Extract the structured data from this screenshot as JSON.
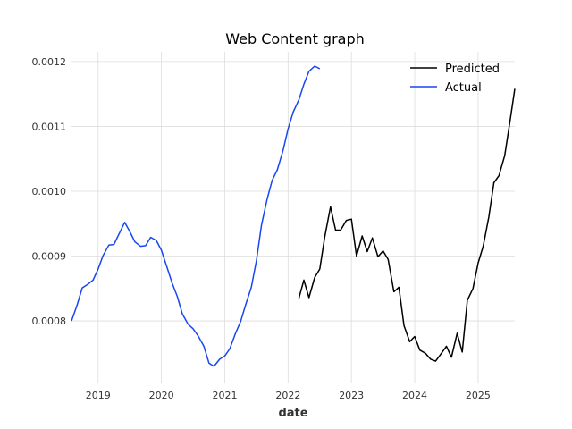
{
  "chart_data": {
    "type": "line",
    "title": "Web Content graph",
    "xlabel": "date",
    "ylabel": "",
    "x_ticks": [
      "2019",
      "2020",
      "2021",
      "2022",
      "2023",
      "2024",
      "2025"
    ],
    "y_ticks": [
      "0.0008",
      "0.0009",
      "0.0010",
      "0.0011",
      "0.0012"
    ],
    "xlim": [
      2018.58,
      2025.58
    ],
    "ylim": [
      0.000705,
      0.001215
    ],
    "grid": true,
    "legend_position": "top-right",
    "series": [
      {
        "name": "Predicted",
        "color": "#000000",
        "x": [
          2022.17,
          2022.25,
          2022.33,
          2022.42,
          2022.5,
          2022.58,
          2022.67,
          2022.75,
          2022.83,
          2022.92,
          2023.0,
          2023.08,
          2023.17,
          2023.25,
          2023.33,
          2023.42,
          2023.5,
          2023.58,
          2023.67,
          2023.75,
          2023.83,
          2023.92,
          2024.0,
          2024.08,
          2024.17,
          2024.25,
          2024.33,
          2024.42,
          2024.5,
          2024.58,
          2024.67,
          2024.75,
          2024.83,
          2024.92,
          2025.0,
          2025.08,
          2025.17,
          2025.25,
          2025.33,
          2025.42,
          2025.5,
          2025.58
        ],
        "values": [
          0.000835,
          0.000863,
          0.000836,
          0.000867,
          0.00088,
          0.00093,
          0.000976,
          0.00094,
          0.00094,
          0.000955,
          0.000957,
          0.0009,
          0.000931,
          0.000907,
          0.000928,
          0.000899,
          0.000908,
          0.000895,
          0.000845,
          0.000852,
          0.000793,
          0.000768,
          0.000776,
          0.000755,
          0.00075,
          0.000741,
          0.000738,
          0.00075,
          0.000761,
          0.000744,
          0.000781,
          0.000752,
          0.000832,
          0.00085,
          0.000889,
          0.000915,
          0.00096,
          0.001013,
          0.001024,
          0.001055,
          0.001105,
          0.001158
        ]
      },
      {
        "name": "Actual",
        "color": "#1847f0",
        "x": [
          2018.58,
          2018.67,
          2018.75,
          2018.83,
          2018.92,
          2019.0,
          2019.08,
          2019.17,
          2019.25,
          2019.33,
          2019.42,
          2019.5,
          2019.58,
          2019.67,
          2019.75,
          2019.83,
          2019.92,
          2020.0,
          2020.08,
          2020.17,
          2020.25,
          2020.33,
          2020.42,
          2020.5,
          2020.58,
          2020.67,
          2020.75,
          2020.83,
          2020.92,
          2021.0,
          2021.08,
          2021.17,
          2021.25,
          2021.33,
          2021.42,
          2021.5,
          2021.58,
          2021.67,
          2021.75,
          2021.83,
          2021.92,
          2022.0,
          2022.08,
          2022.17,
          2022.25,
          2022.33,
          2022.42,
          2022.5
        ],
        "values": [
          0.0008,
          0.000825,
          0.000851,
          0.000856,
          0.000863,
          0.00088,
          0.000901,
          0.000917,
          0.000918,
          0.000934,
          0.000952,
          0.000938,
          0.000922,
          0.000915,
          0.000916,
          0.000929,
          0.000924,
          0.000909,
          0.000885,
          0.000858,
          0.000838,
          0.000811,
          0.000795,
          0.000788,
          0.000777,
          0.000761,
          0.000735,
          0.00073,
          0.000741,
          0.000746,
          0.000757,
          0.000781,
          0.000799,
          0.000825,
          0.000852,
          0.000893,
          0.000948,
          0.000988,
          0.001017,
          0.001033,
          0.001063,
          0.001096,
          0.001122,
          0.001141,
          0.001165,
          0.001185,
          0.001193,
          0.001189
        ]
      }
    ]
  }
}
